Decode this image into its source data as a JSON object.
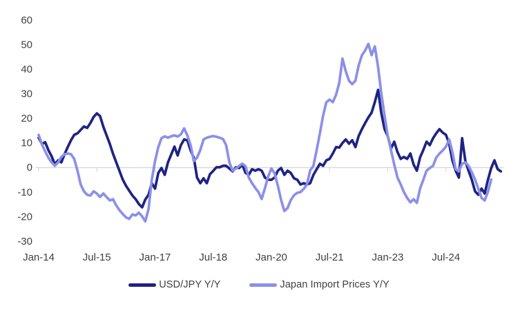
{
  "chart_data": {
    "type": "line",
    "title": "",
    "frequency": "monthly",
    "start_month": "Jan-2014",
    "x_axis": {
      "tick_labels": [
        "Jan-14",
        "Jul-15",
        "Jan-17",
        "Jul-18",
        "Jan-20",
        "Jul-21",
        "Jan-23",
        "Jul-24"
      ],
      "tick_interval_months": 18
    },
    "y_axis": {
      "ticks": [
        60,
        50,
        40,
        30,
        20,
        10,
        0,
        -10,
        -20,
        -30
      ],
      "min": -30,
      "max": 60,
      "gridlines": "zero-line-only"
    },
    "legend_position": "bottom",
    "series": [
      {
        "name": "USD/JPY Y/Y",
        "color": "#1e2383",
        "values": [
          12.0,
          9.5,
          10.2,
          7.0,
          4.5,
          1.2,
          2.8,
          2.0,
          5.3,
          8.2,
          11.0,
          13.2,
          13.8,
          15.2,
          16.6,
          16.0,
          18.0,
          20.5,
          21.9,
          20.8,
          16.5,
          13.0,
          9.5,
          5.5,
          2.0,
          -1.5,
          -5.0,
          -7.5,
          -9.5,
          -11.5,
          -13.0,
          -15.0,
          -16.3,
          -13.1,
          -11.2,
          -6.5,
          -8.7,
          -2.3,
          -0.3,
          -3.1,
          2.0,
          5.2,
          8.4,
          4.8,
          9.0,
          11.3,
          11.0,
          6.8,
          3.9,
          -4.2,
          -6.5,
          -4.5,
          -6.5,
          -2.8,
          -1.5,
          0.0,
          0.0,
          0.6,
          0.6,
          -0.5,
          -1.7,
          0.0,
          -0.3,
          1.1,
          -2.3,
          -3.1,
          -0.8,
          -1.4,
          -0.8,
          -1.4,
          -4.2,
          -5.1,
          -5.1,
          -4.2,
          -1.4,
          -0.3,
          -3.1,
          -1.4,
          -2.3,
          -4.5,
          -5.1,
          -7.0,
          -6.5,
          -7.0,
          -6.5,
          -3.1,
          -0.8,
          1.4,
          0.6,
          2.8,
          3.4,
          5.6,
          8.2,
          8.0,
          9.9,
          11.3,
          9.6,
          11.0,
          8.2,
          12.7,
          15.5,
          18.0,
          20.3,
          22.2,
          26.5,
          31.5,
          22.0,
          15.5,
          12.7,
          7.6,
          10.4,
          6.2,
          3.4,
          4.2,
          3.4,
          5.6,
          1.1,
          -1.4,
          4.0,
          7.0,
          10.4,
          9.0,
          11.8,
          13.8,
          15.5,
          14.1,
          13.2,
          9.6,
          2.8,
          -1.4,
          -4.2,
          11.8,
          2.5,
          -1.4,
          -5.1,
          -9.8,
          -11.2,
          -8.7,
          -10.7,
          -5.1,
          -0.3,
          2.8,
          -0.8,
          -1.7
        ]
      },
      {
        "name": "Japan Import Prices Y/Y",
        "color": "#8a90e8",
        "values": [
          13.2,
          9.3,
          6.5,
          3.9,
          2.0,
          0.6,
          2.0,
          4.2,
          5.3,
          5.6,
          5.3,
          3.4,
          -1.4,
          -7.0,
          -9.8,
          -11.2,
          -11.5,
          -9.8,
          -10.7,
          -12.1,
          -10.7,
          -12.1,
          -13.5,
          -13.0,
          -15.5,
          -17.5,
          -19.0,
          -20.4,
          -21.0,
          -19.2,
          -19.6,
          -18.5,
          -20.0,
          -22.0,
          -17.0,
          -5.0,
          2.5,
          8.2,
          11.8,
          12.6,
          12.0,
          12.6,
          13.0,
          12.5,
          13.4,
          15.8,
          13.0,
          9.0,
          2.5,
          3.9,
          7.0,
          11.3,
          12.0,
          12.4,
          12.7,
          12.4,
          12.0,
          11.5,
          9.0,
          2.0,
          -1.4,
          -0.5,
          0.5,
          1.5,
          0.4,
          -4.2,
          -6.5,
          -8.4,
          -10.1,
          -12.9,
          -8.5,
          -3.7,
          -0.5,
          -2.5,
          -7.5,
          -13.3,
          -17.8,
          -16.6,
          -13.4,
          -11.4,
          -10.4,
          -10.1,
          -8.8,
          -7.0,
          -1.3,
          0.6,
          7.0,
          13.8,
          21.0,
          26.5,
          27.5,
          26.5,
          29.5,
          34.3,
          44.2,
          39.1,
          35.2,
          33.8,
          35.2,
          41.4,
          45.6,
          47.5,
          50.2,
          45.6,
          49.2,
          40.8,
          30.0,
          21.0,
          12.7,
          7.0,
          1.1,
          -4.2,
          -7.0,
          -10.1,
          -12.5,
          -14.3,
          -13.0,
          -14.5,
          -8.7,
          -5.1,
          -1.4,
          -0.3,
          0.6,
          3.9,
          5.6,
          6.8,
          8.4,
          11.3,
          6.2,
          -0.8,
          -1.7,
          1.4,
          2.0,
          0.6,
          -2.0,
          -5.0,
          -8.7,
          -12.5,
          -13.5,
          -10.0,
          -5.0
        ]
      }
    ]
  },
  "legend": {
    "items": [
      {
        "label": "USD/JPY Y/Y"
      },
      {
        "label": "Japan Import Prices Y/Y"
      }
    ]
  },
  "colors": {
    "series1": "#1e2383",
    "series2": "#8a90e8",
    "axis_line": "#d9d9d9",
    "axis_text": "#404040",
    "background": "#ffffff"
  }
}
